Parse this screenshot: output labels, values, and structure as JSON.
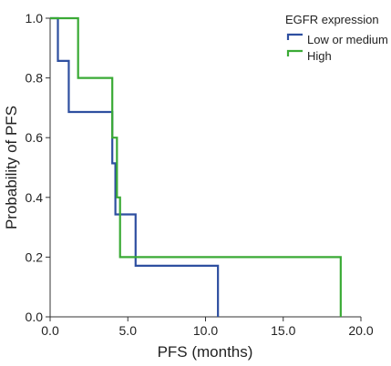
{
  "chart_data": {
    "type": "line",
    "step": true,
    "xlabel": "PFS (months)",
    "ylabel": "Probability of PFS",
    "xlim": [
      0,
      20
    ],
    "ylim": [
      0,
      1
    ],
    "x_ticks": [
      "0.0",
      "5.0",
      "10.0",
      "15.0",
      "20.0"
    ],
    "y_ticks": [
      "0.0",
      "0.2",
      "0.4",
      "0.6",
      "0.8",
      "1.0"
    ],
    "grid": false,
    "legend": {
      "title": "EGFR expression",
      "position": "top-right"
    },
    "series": [
      {
        "name": "Low or medium",
        "color": "#2e4fa0",
        "x": [
          0,
          0.5,
          1.2,
          4.0,
          4.2,
          5.5,
          10.8
        ],
        "y": [
          1.0,
          0.857,
          0.686,
          0.514,
          0.343,
          0.171,
          0.0
        ]
      },
      {
        "name": "High",
        "color": "#3aaa35",
        "x": [
          0,
          1.8,
          4.0,
          4.3,
          4.5,
          18.7
        ],
        "y": [
          1.0,
          0.8,
          0.6,
          0.4,
          0.2,
          0.0
        ]
      }
    ]
  }
}
